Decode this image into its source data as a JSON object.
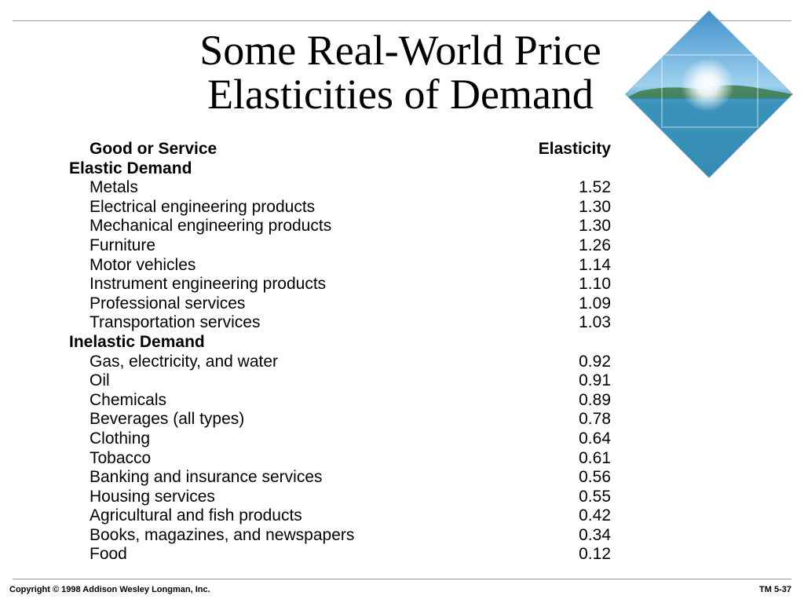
{
  "slide": {
    "title_line1": "Some Real-World Price",
    "title_line2": "Elasticities of Demand",
    "footer_copyright": "Copyright © 1998 Addison Wesley Longman, Inc.",
    "footer_code": "TM 5-37"
  },
  "table": {
    "header": {
      "good": "Good or Service",
      "elasticity": "Elasticity"
    },
    "elastic_label": "Elastic Demand",
    "elastic": [
      {
        "good": "Metals",
        "value": "1.52"
      },
      {
        "good": "Electrical engineering products",
        "value": "1.30"
      },
      {
        "good": "Mechanical engineering products",
        "value": "1.30"
      },
      {
        "good": "Furniture",
        "value": "1.26"
      },
      {
        "good": "Motor vehicles",
        "value": "1.14"
      },
      {
        "good": "Instrument engineering products",
        "value": "1.10"
      },
      {
        "good": "Professional services",
        "value": "1.09"
      },
      {
        "good": "Transportation services",
        "value": "1.03"
      }
    ],
    "inelastic_label": "Inelastic Demand",
    "inelastic": [
      {
        "good": "Gas, electricity, and water",
        "value": "0.92"
      },
      {
        "good": "Oil",
        "value": "0.91"
      },
      {
        "good": "Chemicals",
        "value": "0.89"
      },
      {
        "good": "Beverages (all types)",
        "value": "0.78"
      },
      {
        "good": "Clothing",
        "value": "0.64"
      },
      {
        "good": "Tobacco",
        "value": "0.61"
      },
      {
        "good": "Banking and insurance services",
        "value": "0.56"
      },
      {
        "good": "Housing services",
        "value": "0.55"
      },
      {
        "good": "Agricultural and fish products",
        "value": "0.42"
      },
      {
        "good": "Books, magazines, and newspapers",
        "value": "0.34"
      },
      {
        "good": "Food",
        "value": "0.12"
      }
    ]
  }
}
